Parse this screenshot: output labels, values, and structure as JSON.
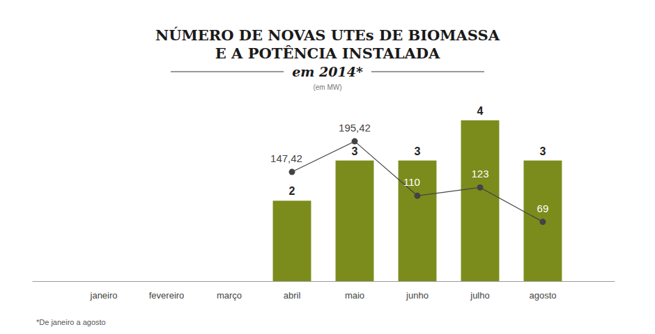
{
  "chart_data": {
    "type": "bar",
    "title": [
      "NÚMERO DE NOVAS UTEs DE BIOMASSA",
      "E A POTÊNCIA INSTALADA"
    ],
    "subtitle": "em 2014*",
    "unit_label": "(em MW)",
    "footnote": "*De janeiro a agosto",
    "categories": [
      "janeiro",
      "fevereiro",
      "março",
      "abril",
      "maio",
      "junho",
      "julho",
      "agosto"
    ],
    "series": [
      {
        "type": "bar",
        "color": "#7b8c1c",
        "values": [
          null,
          null,
          null,
          2,
          3,
          3,
          4,
          3
        ]
      },
      {
        "type": "line",
        "axis": "y2",
        "color": "#444444",
        "marker": "circle",
        "values": [
          null,
          null,
          null,
          147.42,
          195.42,
          110,
          123,
          69
        ],
        "value_labels": [
          null,
          null,
          null,
          "147,42",
          "195,42",
          "110",
          "123",
          "69"
        ]
      }
    ],
    "ylim": [
      0,
      4.5
    ],
    "y2lim": [
      -24,
      260
    ],
    "data_labels": true,
    "tick_labels": "x",
    "grid": false
  }
}
